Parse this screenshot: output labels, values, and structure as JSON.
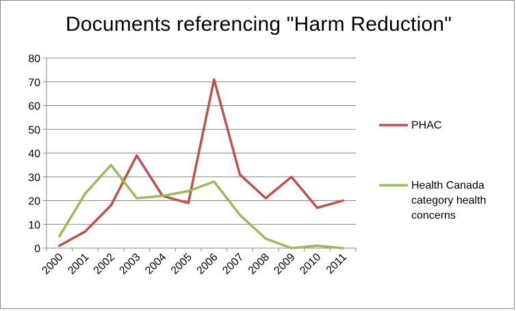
{
  "chart_data": {
    "type": "line",
    "title": "Documents referencing \"Harm Reduction\"",
    "xlabel": "",
    "ylabel": "",
    "categories": [
      "2000",
      "2001",
      "2002",
      "2003",
      "2004",
      "2005",
      "2006",
      "2007",
      "2008",
      "2009",
      "2010",
      "2011"
    ],
    "ylim": [
      0,
      80
    ],
    "yticks": [
      0,
      10,
      20,
      30,
      40,
      50,
      60,
      70,
      80
    ],
    "grid": true,
    "legend": "right",
    "series": [
      {
        "name": "PHAC",
        "color": "#c0504d",
        "values": [
          1,
          7,
          18,
          39,
          22,
          19,
          71,
          31,
          21,
          30,
          17,
          20
        ]
      },
      {
        "name": "Health Canada category health concerns",
        "legend_lines": [
          "Health Canada",
          "category health",
          "concerns"
        ],
        "color": "#9bbb59",
        "values": [
          5,
          23,
          35,
          21,
          22,
          24,
          28,
          14,
          4,
          0,
          1,
          0
        ]
      }
    ]
  }
}
